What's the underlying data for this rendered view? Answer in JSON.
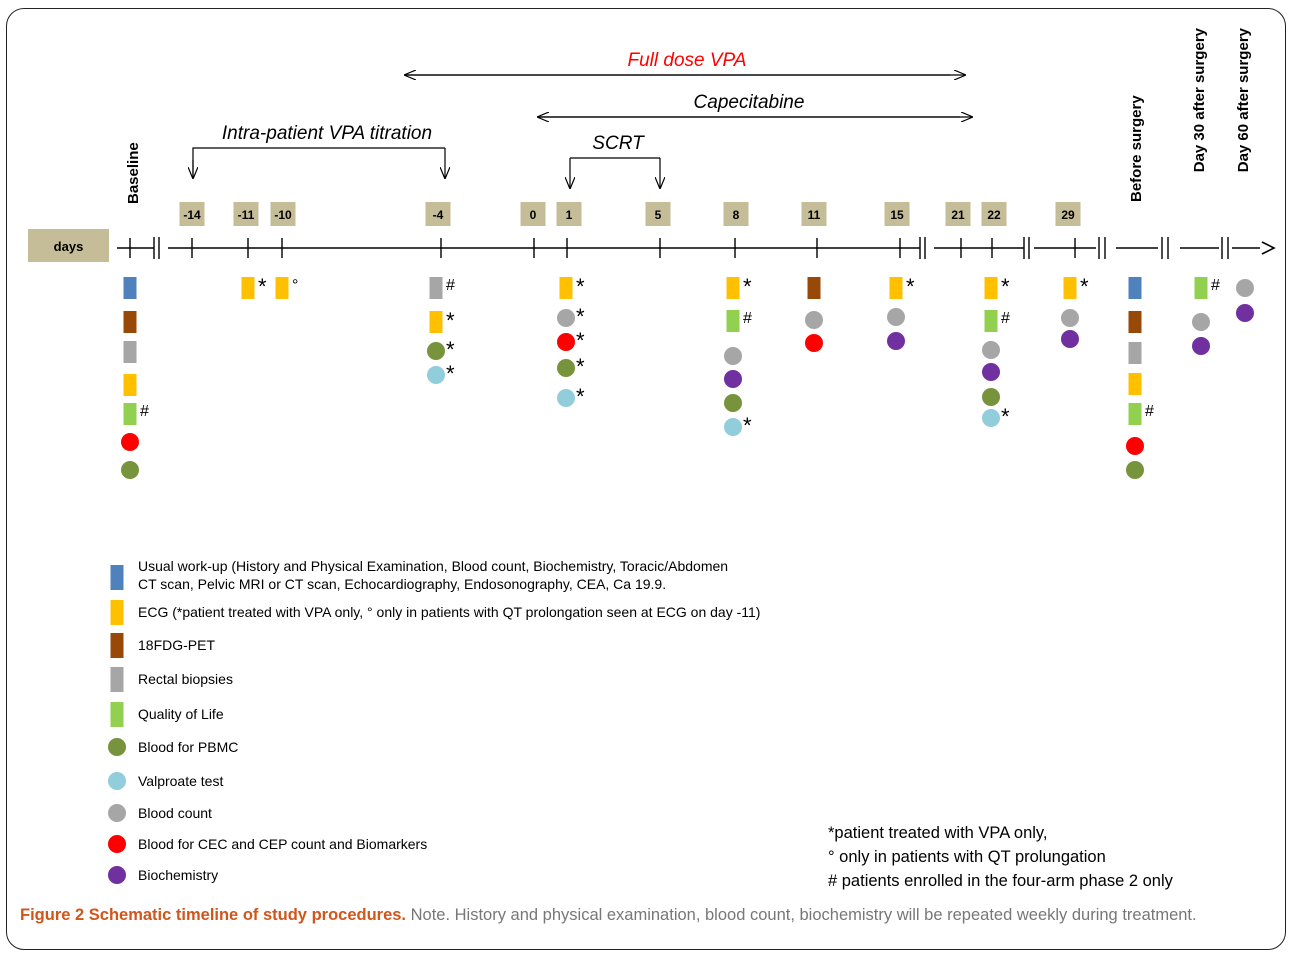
{
  "figure": {
    "axis_label": "days",
    "arrows": {
      "full_dose": "Full dose VPA",
      "capecitabine": "Capecitabine",
      "titration": "Intra-patient VPA titration",
      "scrt": "SCRT"
    },
    "day_labels": [
      "-14",
      "-11",
      "-10",
      "-4",
      "0",
      "1",
      "5",
      "8",
      "11",
      "15",
      "21",
      "22",
      "29"
    ],
    "phase_labels": [
      "Baseline",
      "Before surgery",
      "Day 30 after surgery",
      "Day 60 after surgery"
    ],
    "colors": {
      "workup": "#4f81bd",
      "ecg": "#ffc000",
      "pet": "#984807",
      "biopsy": "#a6a6a6",
      "qol": "#92d050",
      "pbmc": "#77933c",
      "valproate": "#92cddc",
      "bloodcount": "#a6a6a6",
      "cec": "#ff0000",
      "biochem": "#7030a0",
      "daybox": "#c4bd97",
      "accent_red": "#ff0000"
    },
    "legend": [
      {
        "key": "workup",
        "shape": "rect",
        "text": "Usual work-up (History and Physical Examination, Blood count, Biochemistry, Toracic/Abdomen",
        "text2": "CT scan, Pelvic MRI or CT scan, Echocardiography, Endosonography, CEA, Ca 19.9."
      },
      {
        "key": "ecg",
        "shape": "rect",
        "text": "ECG (*patient treated with VPA only, °   only in patients with QT prolongation seen at ECG on day -11)"
      },
      {
        "key": "pet",
        "shape": "rect",
        "text": "18FDG-PET"
      },
      {
        "key": "biopsy",
        "shape": "rect",
        "text": "Rectal biopsies"
      },
      {
        "key": "qol",
        "shape": "rect",
        "text": "Quality of Life"
      },
      {
        "key": "pbmc",
        "shape": "circle",
        "text": "Blood for PBMC"
      },
      {
        "key": "valproate",
        "shape": "circle",
        "text": "Valproate test"
      },
      {
        "key": "bloodcount",
        "shape": "circle",
        "text": "Blood count"
      },
      {
        "key": "cec",
        "shape": "circle",
        "text": "Blood for CEC and CEP count and Biomarkers"
      },
      {
        "key": "biochem",
        "shape": "circle",
        "text": "Biochemistry"
      }
    ],
    "notes": [
      "*patient treated with VPA only,",
      "°   only in patients with QT prolungation",
      "# patients enrolled in the four-arm phase 2 only"
    ],
    "marks": [
      {
        "col": "baseline",
        "items": [
          [
            "rect",
            "workup",
            ""
          ],
          [
            "rect",
            "pet",
            ""
          ],
          [
            "rect",
            "biopsy",
            ""
          ],
          [
            "rect",
            "ecg",
            ""
          ],
          [
            "rect",
            "qol",
            "#"
          ],
          [
            "circle",
            "cec",
            ""
          ],
          [
            "circle",
            "pbmc",
            ""
          ]
        ]
      },
      {
        "col": "-11",
        "items": [
          [
            "rect",
            "ecg",
            "*"
          ]
        ]
      },
      {
        "col": "-10",
        "items": [
          [
            "rect",
            "ecg",
            "°"
          ]
        ]
      },
      {
        "col": "-4",
        "items": [
          [
            "rect",
            "biopsy",
            "#"
          ],
          [
            "rect",
            "ecg",
            "*"
          ],
          [
            "circle",
            "pbmc",
            "*"
          ],
          [
            "circle",
            "valproate",
            "*"
          ]
        ]
      },
      {
        "col": "1",
        "items": [
          [
            "rect",
            "ecg",
            "*"
          ],
          [
            "circle",
            "bloodcount",
            "*"
          ],
          [
            "circle",
            "cec",
            "*"
          ],
          [
            "circle",
            "pbmc",
            "*"
          ],
          [
            "circle",
            "valproate",
            "*"
          ]
        ]
      },
      {
        "col": "8",
        "items": [
          [
            "rect",
            "ecg",
            "*"
          ],
          [
            "rect",
            "qol",
            "#"
          ],
          [
            "circle",
            "bloodcount",
            ""
          ],
          [
            "circle",
            "biochem",
            ""
          ],
          [
            "circle",
            "pbmc",
            ""
          ],
          [
            "circle",
            "valproate",
            "*"
          ]
        ]
      },
      {
        "col": "11",
        "items": [
          [
            "rect",
            "pet",
            ""
          ],
          [
            "circle",
            "bloodcount",
            ""
          ],
          [
            "circle",
            "cec",
            ""
          ]
        ]
      },
      {
        "col": "15",
        "items": [
          [
            "rect",
            "ecg",
            "*"
          ],
          [
            "circle",
            "bloodcount",
            ""
          ],
          [
            "circle",
            "biochem",
            ""
          ]
        ]
      },
      {
        "col": "22",
        "items": [
          [
            "rect",
            "ecg",
            "*"
          ],
          [
            "rect",
            "qol",
            "#"
          ],
          [
            "circle",
            "bloodcount",
            ""
          ],
          [
            "circle",
            "biochem",
            ""
          ],
          [
            "circle",
            "pbmc",
            ""
          ],
          [
            "circle",
            "valproate",
            "*"
          ]
        ]
      },
      {
        "col": "29",
        "items": [
          [
            "rect",
            "ecg",
            "*"
          ],
          [
            "circle",
            "bloodcount",
            ""
          ],
          [
            "circle",
            "biochem",
            ""
          ]
        ]
      },
      {
        "col": "before",
        "items": [
          [
            "rect",
            "workup",
            ""
          ],
          [
            "rect",
            "pet",
            ""
          ],
          [
            "rect",
            "biopsy",
            ""
          ],
          [
            "rect",
            "ecg",
            ""
          ],
          [
            "rect",
            "qol",
            "#"
          ],
          [
            "circle",
            "cec",
            ""
          ],
          [
            "circle",
            "pbmc",
            ""
          ]
        ]
      },
      {
        "col": "day30",
        "items": [
          [
            "rect",
            "qol",
            "#"
          ],
          [
            "circle",
            "bloodcount",
            ""
          ],
          [
            "circle",
            "biochem",
            ""
          ]
        ]
      },
      {
        "col": "day60",
        "items": [
          [
            "circle",
            "bloodcount",
            ""
          ],
          [
            "circle",
            "biochem",
            ""
          ]
        ]
      }
    ]
  },
  "caption": {
    "bold": "Figure 2 Schematic timeline of study procedures.",
    "text": " Note. History and physical examination, blood count, biochemistry will be repeated weekly during treatment."
  }
}
